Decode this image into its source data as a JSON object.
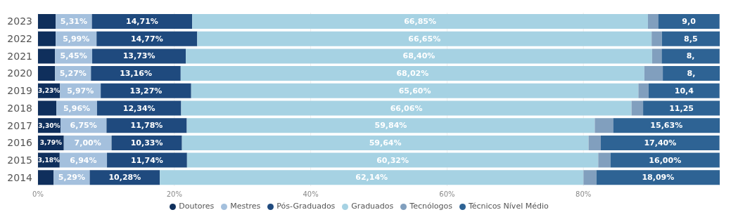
{
  "chart_data": {
    "type": "bar",
    "orientation": "horizontal",
    "stacked": true,
    "categories": [
      "2023",
      "2022",
      "2021",
      "2020",
      "2019",
      "2018",
      "2017",
      "2016",
      "2015",
      "2014"
    ],
    "series": [
      {
        "name": "Doutores",
        "color": "#0f2f5c",
        "values": [
          2.6,
          2.6,
          2.5,
          2.5,
          3.23,
          2.7,
          3.3,
          3.79,
          3.18,
          2.3
        ],
        "value_labels": [
          null,
          null,
          null,
          null,
          "3,23%",
          null,
          "3,30%",
          "3,79%",
          "3,18%",
          null
        ]
      },
      {
        "name": "Mestres",
        "color": "#a4c0dd",
        "values": [
          5.31,
          5.99,
          5.45,
          5.27,
          5.97,
          5.96,
          6.75,
          7.0,
          6.94,
          5.29
        ],
        "value_labels": [
          "5,31%",
          "5,99%",
          "5,45%",
          "5,27%",
          "5,97%",
          "5,96%",
          "6,75%",
          "7,00%",
          "6,94%",
          "5,29%"
        ]
      },
      {
        "name": "Pós-Graduados",
        "color": "#1f4a7e",
        "values": [
          14.71,
          14.77,
          13.73,
          13.16,
          13.27,
          12.34,
          11.78,
          10.33,
          11.74,
          10.28
        ],
        "value_labels": [
          "14,71%",
          "14,77%",
          "13,73%",
          "13,16%",
          "13,27%",
          "12,34%",
          "11,78%",
          "10,33%",
          "11,74%",
          "10,28%"
        ]
      },
      {
        "name": "Graduados",
        "color": "#a6d2e3",
        "values": [
          66.85,
          66.65,
          68.4,
          68.02,
          65.6,
          66.06,
          59.84,
          59.64,
          60.32,
          62.14
        ],
        "value_labels": [
          "66,85%",
          "66,65%",
          "68,40%",
          "68,02%",
          "65,60%",
          "66,06%",
          "59,84%",
          "59,64%",
          "60,32%",
          "62,14%"
        ]
      },
      {
        "name": "Tecnólogos",
        "color": "#819fbe",
        "values": [
          1.5,
          1.5,
          1.4,
          2.7,
          1.5,
          1.7,
          2.7,
          1.8,
          1.8,
          1.9
        ]
      },
      {
        "name": "Técnicos Nível Médio",
        "color": "#2e6394",
        "values": [
          9.0,
          8.5,
          8.5,
          8.4,
          10.4,
          11.25,
          15.63,
          17.4,
          16.0,
          18.09
        ],
        "value_labels": [
          "9,0",
          "8,5",
          "8,",
          "8,",
          "10,4",
          "11,25",
          "15,63%",
          "17,40%",
          "16,00%",
          "18,09%"
        ]
      }
    ],
    "xlim": [
      0,
      100
    ],
    "xticks": [
      {
        "value": 0,
        "label": "0%"
      },
      {
        "value": 20,
        "label": "20%"
      },
      {
        "value": 40,
        "label": "40%"
      },
      {
        "value": 60,
        "label": "60%"
      },
      {
        "value": 80,
        "label": "80%"
      },
      {
        "value": 100,
        "label": null
      }
    ],
    "grid": "x",
    "legend": "bottom"
  }
}
